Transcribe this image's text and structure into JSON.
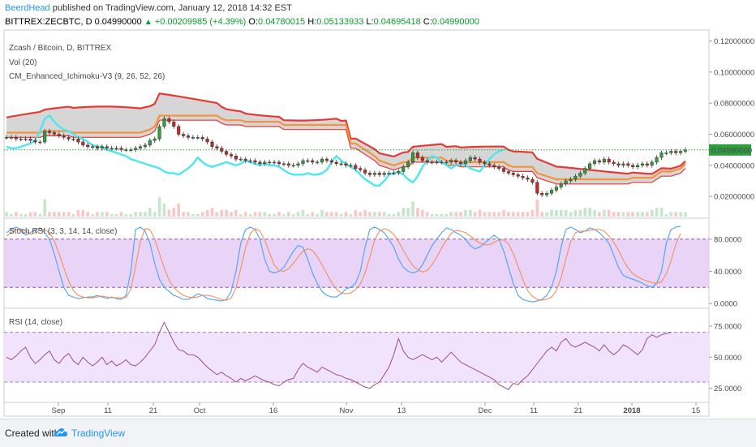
{
  "header": {
    "author": "BeerdHead",
    "published": "published on TradingView.com, January 12, 2018 14:32 EST",
    "symbol_line": "BITTREX:ZECBTC, D",
    "last": "0.04990000",
    "change": "+0.00209985 (+4.39%)",
    "o_label": "O:",
    "o": "0.04780015",
    "h_label": "H:",
    "h": "0.05133933",
    "l_label": "L:",
    "l": "0.04695418",
    "c_label": "C:",
    "c": "0.04990000"
  },
  "footer": {
    "created": "Created with",
    "brand": "TradingView"
  },
  "chart_data": [
    {
      "type": "candlestick",
      "title": "Zcash / Bitcoin, D, BITTREX",
      "indicators": [
        "Vol (20)",
        "CM_Enhanced_Ichimoku-V3 (9, 26, 52, 26)"
      ],
      "y_ticks": [
        "0.12000000",
        "0.10000000",
        "0.08000000",
        "0.06000000",
        "0.04000000",
        "0.02000000"
      ],
      "ylim": [
        0.007,
        0.126
      ],
      "last_price_label": "0.04990000",
      "last_price": 0.0499,
      "close": [
        0.058,
        0.058,
        0.057,
        0.057,
        0.057,
        0.056,
        0.055,
        0.055,
        0.062,
        0.061,
        0.06,
        0.059,
        0.058,
        0.057,
        0.057,
        0.055,
        0.053,
        0.052,
        0.052,
        0.051,
        0.052,
        0.051,
        0.051,
        0.051,
        0.05,
        0.05,
        0.05,
        0.051,
        0.052,
        0.053,
        0.056,
        0.057,
        0.065,
        0.07,
        0.068,
        0.065,
        0.06,
        0.059,
        0.058,
        0.058,
        0.058,
        0.057,
        0.055,
        0.052,
        0.051,
        0.049,
        0.047,
        0.046,
        0.044,
        0.044,
        0.043,
        0.043,
        0.042,
        0.041,
        0.042,
        0.042,
        0.042,
        0.041,
        0.041,
        0.04,
        0.04,
        0.041,
        0.043,
        0.043,
        0.042,
        0.042,
        0.044,
        0.043,
        0.042,
        0.041,
        0.041,
        0.04,
        0.04,
        0.038,
        0.037,
        0.035,
        0.034,
        0.035,
        0.034,
        0.035,
        0.035,
        0.035,
        0.036,
        0.039,
        0.042,
        0.048,
        0.045,
        0.043,
        0.042,
        0.042,
        0.042,
        0.042,
        0.042,
        0.043,
        0.042,
        0.041,
        0.043,
        0.045,
        0.044,
        0.042,
        0.041,
        0.04,
        0.039,
        0.038,
        0.036,
        0.035,
        0.034,
        0.033,
        0.032,
        0.031,
        0.029,
        0.022,
        0.021,
        0.022,
        0.024,
        0.026,
        0.028,
        0.03,
        0.031,
        0.033,
        0.035,
        0.038,
        0.041,
        0.043,
        0.042,
        0.044,
        0.042,
        0.041,
        0.04,
        0.041,
        0.04,
        0.039,
        0.04,
        0.041,
        0.04,
        0.042,
        0.045,
        0.048,
        0.048,
        0.049,
        0.048,
        0.049,
        0.0499
      ],
      "ichimoku": {
        "kijun": [
          0.061,
          0.061,
          0.061,
          0.061,
          0.061,
          0.061,
          0.061,
          0.061,
          0.062,
          0.062,
          0.062,
          0.062,
          0.062,
          0.062,
          0.061,
          0.061,
          0.061,
          0.061,
          0.061,
          0.061,
          0.061,
          0.061,
          0.061,
          0.061,
          0.061,
          0.061,
          0.061,
          0.061,
          0.061,
          0.062,
          0.063,
          0.065,
          0.072,
          0.072,
          0.072,
          0.072,
          0.072,
          0.072,
          0.072,
          0.072,
          0.072,
          0.072,
          0.072,
          0.072,
          0.072,
          0.07,
          0.069,
          0.069,
          0.069,
          0.069,
          0.068,
          0.068,
          0.068,
          0.068,
          0.068,
          0.068,
          0.068,
          0.068,
          0.066,
          0.066,
          0.066,
          0.066,
          0.066,
          0.066,
          0.066,
          0.066,
          0.066,
          0.066,
          0.066,
          0.066,
          0.066,
          0.066,
          0.054,
          0.054,
          0.052,
          0.05,
          0.048,
          0.046,
          0.043,
          0.042,
          0.041,
          0.04,
          0.041,
          0.042,
          0.042,
          0.045,
          0.045,
          0.045,
          0.045,
          0.045,
          0.045,
          0.045,
          0.043,
          0.043,
          0.043,
          0.042,
          0.042,
          0.042,
          0.042,
          0.042,
          0.042,
          0.042,
          0.042,
          0.042,
          0.042,
          0.04,
          0.039,
          0.039,
          0.039,
          0.039,
          0.039,
          0.035,
          0.034,
          0.033,
          0.032,
          0.031,
          0.031,
          0.031,
          0.031,
          0.031,
          0.031,
          0.031,
          0.031,
          0.031,
          0.031,
          0.031,
          0.031,
          0.031,
          0.031,
          0.031,
          0.031,
          0.032,
          0.032,
          0.032,
          0.032,
          0.032,
          0.034,
          0.036,
          0.036,
          0.036,
          0.037,
          0.038,
          0.041
        ],
        "chikou": [
          0.052,
          0.051,
          0.051,
          0.052,
          0.053,
          0.054,
          0.056,
          0.062,
          0.07,
          0.072,
          0.068,
          0.065,
          0.063,
          0.062,
          0.06,
          0.058,
          0.057,
          0.055,
          0.053,
          0.052,
          0.052,
          0.05,
          0.049,
          0.048,
          0.047,
          0.046,
          0.044,
          0.043,
          0.042,
          0.041,
          0.04,
          0.039,
          0.038,
          0.036,
          0.035,
          0.035,
          0.034,
          0.036,
          0.038,
          0.041,
          0.045,
          0.042,
          0.04,
          0.039,
          0.04,
          0.041,
          0.042,
          0.041,
          0.04,
          0.041,
          0.043,
          0.042,
          0.041,
          0.04,
          0.041,
          0.04,
          0.04,
          0.039,
          0.037,
          0.035,
          0.034,
          0.034,
          0.034,
          0.035,
          0.034,
          0.034,
          0.035,
          0.037,
          0.042,
          0.046,
          0.043,
          0.041,
          0.039,
          0.037,
          0.034,
          0.031,
          0.029,
          0.027,
          0.027,
          0.03,
          0.034,
          0.035,
          0.036,
          0.034,
          0.031,
          0.029,
          0.033,
          0.039,
          0.043,
          0.046,
          0.045,
          0.042,
          0.04,
          0.038,
          0.04,
          0.041,
          0.04,
          0.038,
          0.037,
          0.036,
          0.04,
          0.044,
          0.047,
          0.049,
          0.05
        ]
      }
    },
    {
      "type": "line",
      "title": "Stoch RSI (3, 3, 14, 14, close)",
      "y_ticks": [
        "80.0000",
        "40.0000",
        "0.0000"
      ],
      "ylim": [
        -4,
        104
      ],
      "bands": [
        80,
        20
      ],
      "series": [
        {
          "values": [
            88,
            92,
            95,
            92,
            85,
            88,
            92,
            94,
            88,
            80,
            62,
            40,
            20,
            10,
            8,
            6,
            7,
            8,
            8,
            10,
            8,
            6,
            8,
            6,
            5,
            10,
            40,
            92,
            95,
            90,
            75,
            50,
            30,
            20,
            15,
            10,
            8,
            5,
            5,
            8,
            12,
            10,
            6,
            5,
            4,
            3,
            5,
            15,
            40,
            75,
            92,
            95,
            92,
            80,
            55,
            40,
            38,
            40,
            45,
            55,
            65,
            72,
            70,
            55,
            38,
            25,
            15,
            10,
            8,
            8,
            12,
            18,
            20,
            25,
            40,
            70,
            92,
            95,
            92,
            88,
            80,
            70,
            55,
            45,
            40,
            38,
            40,
            48,
            60,
            72,
            80,
            88,
            94,
            92,
            88,
            85,
            80,
            72,
            68,
            70,
            75,
            80,
            85,
            80,
            65,
            45,
            25,
            10,
            5,
            3,
            2,
            3,
            5,
            10,
            20,
            40,
            70,
            92,
            95,
            92,
            88,
            90,
            94,
            92,
            88,
            82,
            75,
            60,
            45,
            35,
            32,
            30,
            28,
            25,
            22,
            20,
            25,
            40,
            75,
            92,
            95,
            96
          ]
        },
        {
          "values": [
            84,
            88,
            92,
            93,
            90,
            86,
            88,
            91,
            92,
            88,
            78,
            62,
            44,
            28,
            16,
            10,
            8,
            7,
            7,
            8,
            9,
            8,
            7,
            7,
            7,
            7,
            18,
            46,
            77,
            93,
            92,
            80,
            62,
            44,
            29,
            20,
            14,
            10,
            8,
            7,
            8,
            10,
            10,
            9,
            7,
            5,
            4,
            7,
            19,
            43,
            69,
            87,
            93,
            90,
            79,
            63,
            48,
            41,
            40,
            43,
            50,
            58,
            65,
            68,
            66,
            58,
            48,
            37,
            26,
            18,
            13,
            12,
            13,
            17,
            24,
            38,
            58,
            79,
            90,
            93,
            91,
            86,
            77,
            66,
            56,
            47,
            42,
            39,
            41,
            48,
            58,
            69,
            79,
            87,
            91,
            90,
            88,
            84,
            79,
            75,
            73,
            73,
            76,
            79,
            79,
            74,
            62,
            46,
            30,
            16,
            9,
            5,
            4,
            5,
            8,
            16,
            32,
            55,
            77,
            88,
            90,
            90,
            91,
            92,
            92,
            90,
            84,
            76,
            66,
            54,
            44,
            37,
            33,
            30,
            28,
            26,
            25,
            27,
            37,
            53,
            74,
            87
          ]
        }
      ]
    },
    {
      "type": "line",
      "title": "RSI (14, close)",
      "y_ticks": [
        "75.0000",
        "50.0000",
        "25.0000"
      ],
      "ylim": [
        15,
        88
      ],
      "bands": [
        70,
        30
      ],
      "series": [
        {
          "values": [
            50,
            48,
            51,
            55,
            58,
            50,
            45,
            48,
            52,
            55,
            48,
            45,
            50,
            53,
            47,
            44,
            50,
            46,
            43,
            46,
            50,
            44,
            47,
            43,
            45,
            48,
            44,
            43,
            46,
            50,
            55,
            60,
            70,
            78,
            70,
            62,
            56,
            55,
            52,
            52,
            50,
            46,
            42,
            39,
            36,
            38,
            35,
            33,
            30,
            33,
            31,
            33,
            35,
            33,
            31,
            30,
            28,
            27,
            30,
            32,
            33,
            40,
            45,
            42,
            40,
            38,
            42,
            40,
            38,
            36,
            35,
            33,
            32,
            30,
            28,
            26,
            25,
            28,
            30,
            36,
            42,
            52,
            65,
            55,
            50,
            48,
            50,
            52,
            50,
            48,
            50,
            46,
            50,
            54,
            50,
            46,
            44,
            42,
            40,
            38,
            36,
            34,
            32,
            28,
            26,
            24,
            29,
            28,
            32,
            35,
            40,
            45,
            50,
            55,
            58,
            55,
            62,
            65,
            60,
            58,
            60,
            62,
            60,
            58,
            55,
            60,
            55,
            52,
            55,
            60,
            58,
            55,
            52,
            56,
            65,
            68,
            66,
            68,
            69,
            70
          ]
        }
      ]
    }
  ],
  "x_ticks": [
    "Sep",
    "11",
    "21",
    "Oct",
    "16",
    "Nov",
    "13",
    "Dec",
    "11",
    "21",
    "2018",
    "15"
  ]
}
